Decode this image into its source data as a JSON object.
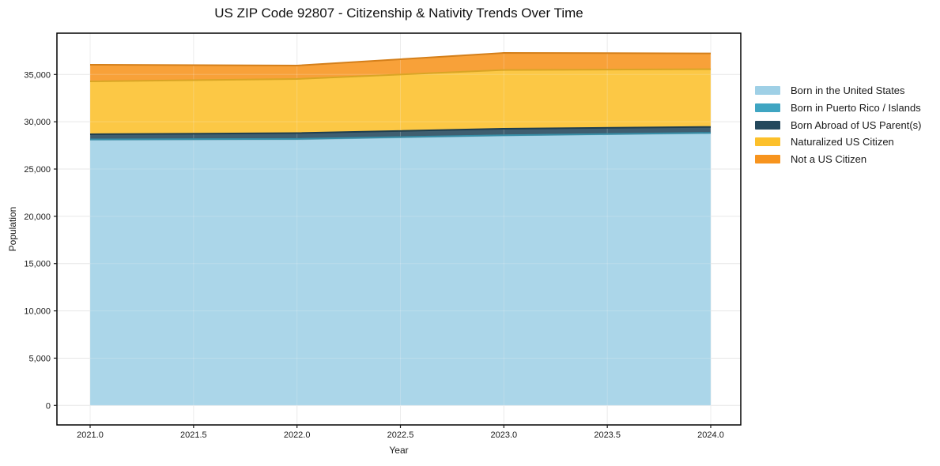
{
  "figure": {
    "title": "US ZIP Code 92807 - Citizenship & Nativity Trends Over Time"
  },
  "chart_data": {
    "type": "area",
    "stacked": true,
    "title": "US ZIP Code 92807 - Citizenship & Nativity Trends Over Time",
    "xlabel": "Year",
    "ylabel": "Population",
    "x": [
      2021,
      2022,
      2023,
      2024
    ],
    "series": [
      {
        "name": "Born in the United States",
        "color": "#9FD0E6",
        "values": [
          28100,
          28150,
          28550,
          28800
        ]
      },
      {
        "name": "Born in Puerto Rico / Islands",
        "color": "#3FA5C2",
        "values": [
          30,
          30,
          30,
          30
        ]
      },
      {
        "name": "Born Abroad of US Parent(s)",
        "color": "#24485C",
        "values": [
          550,
          620,
          680,
          620
        ]
      },
      {
        "name": "Naturalized US Citizen",
        "color": "#FCC02B",
        "values": [
          5590,
          5720,
          6220,
          6110
        ]
      },
      {
        "name": "Not a US Citizen",
        "color": "#F7941E",
        "values": [
          1760,
          1420,
          1800,
          1670
        ]
      }
    ],
    "xticks": {
      "values": [
        2021,
        2021.5,
        2022,
        2022.5,
        2023,
        2023.5,
        2024
      ],
      "labels": [
        "2021.0",
        "2021.5",
        "2022.0",
        "2022.5",
        "2023.0",
        "2023.5",
        "2024.0"
      ]
    },
    "yticks": {
      "values": [
        0,
        5000,
        10000,
        15000,
        20000,
        25000,
        30000,
        35000
      ],
      "labels": [
        "0",
        "5,000",
        "10,000",
        "15,000",
        "20,000",
        "25,000",
        "30,000",
        "35,000"
      ]
    },
    "ylim": [
      0,
      35000
    ],
    "grid": true,
    "legend_position": "right"
  }
}
